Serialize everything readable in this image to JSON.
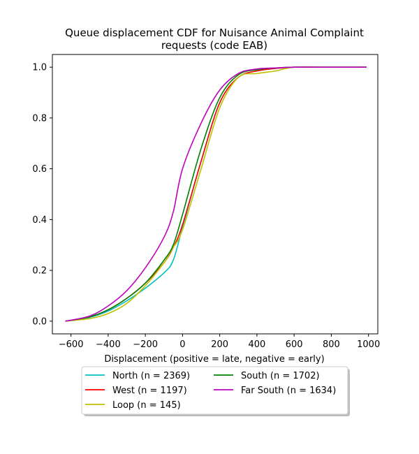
{
  "chart_data": {
    "type": "line",
    "title_lines": [
      "Queue displacement CDF for Nuisance Animal Complaint",
      "requests (code EAB)"
    ],
    "xlabel": "Displacement (positive = late, negative = early)",
    "ylabel": "",
    "xlim": [
      -700,
      1050
    ],
    "ylim": [
      -0.05,
      1.05
    ],
    "x_ticks": [
      -600,
      -400,
      -200,
      0,
      200,
      400,
      600,
      800,
      1000
    ],
    "y_ticks": [
      0.0,
      0.2,
      0.4,
      0.6,
      0.8,
      1.0
    ],
    "x_tick_labels": [
      "−600",
      "−400",
      "−200",
      "0",
      "200",
      "400",
      "600",
      "800",
      "1000"
    ],
    "y_tick_labels": [
      "0.0",
      "0.2",
      "0.4",
      "0.6",
      "0.8",
      "1.0"
    ],
    "grid": false,
    "legend_position": "bottom-center, below axes",
    "series": [
      {
        "name": "North (n = 2369)",
        "color": "#00bfbf",
        "x": [
          -630,
          -500,
          -400,
          -300,
          -200,
          -100,
          -50,
          0,
          100,
          200,
          300,
          400,
          500,
          600,
          800,
          990
        ],
        "y": [
          0.0,
          0.015,
          0.04,
          0.08,
          0.13,
          0.19,
          0.24,
          0.37,
          0.63,
          0.86,
          0.96,
          0.985,
          0.995,
          1.0,
          1.0,
          1.0
        ]
      },
      {
        "name": "West (n = 1197)",
        "color": "#ff0000",
        "x": [
          -630,
          -500,
          -400,
          -300,
          -200,
          -100,
          -50,
          0,
          100,
          200,
          300,
          400,
          500,
          600,
          800,
          990
        ],
        "y": [
          0.0,
          0.017,
          0.045,
          0.09,
          0.15,
          0.23,
          0.29,
          0.38,
          0.63,
          0.86,
          0.96,
          0.985,
          0.995,
          1.0,
          1.0,
          1.0
        ]
      },
      {
        "name": "Loop (n = 145)",
        "color": "#bfbf00",
        "x": [
          -630,
          -500,
          -400,
          -300,
          -200,
          -100,
          -50,
          0,
          100,
          200,
          300,
          400,
          500,
          600,
          800,
          990
        ],
        "y": [
          0.0,
          0.01,
          0.03,
          0.07,
          0.14,
          0.23,
          0.29,
          0.36,
          0.6,
          0.84,
          0.96,
          0.975,
          0.985,
          1.0,
          1.0,
          1.0
        ]
      },
      {
        "name": "South (n = 1702)",
        "color": "#008000",
        "x": [
          -630,
          -500,
          -400,
          -300,
          -200,
          -100,
          -50,
          0,
          100,
          200,
          300,
          400,
          500,
          600,
          800,
          990
        ],
        "y": [
          0.0,
          0.017,
          0.045,
          0.09,
          0.15,
          0.24,
          0.3,
          0.42,
          0.68,
          0.88,
          0.97,
          0.99,
          0.997,
          1.0,
          1.0,
          1.0
        ]
      },
      {
        "name": "Far South (n = 1634)",
        "color": "#bf00bf",
        "x": [
          -630,
          -500,
          -400,
          -300,
          -200,
          -100,
          -50,
          0,
          100,
          200,
          300,
          400,
          500,
          600,
          800,
          990
        ],
        "y": [
          0.0,
          0.02,
          0.06,
          0.12,
          0.21,
          0.33,
          0.43,
          0.6,
          0.78,
          0.91,
          0.975,
          0.993,
          0.997,
          1.0,
          1.0,
          1.0
        ]
      }
    ]
  }
}
